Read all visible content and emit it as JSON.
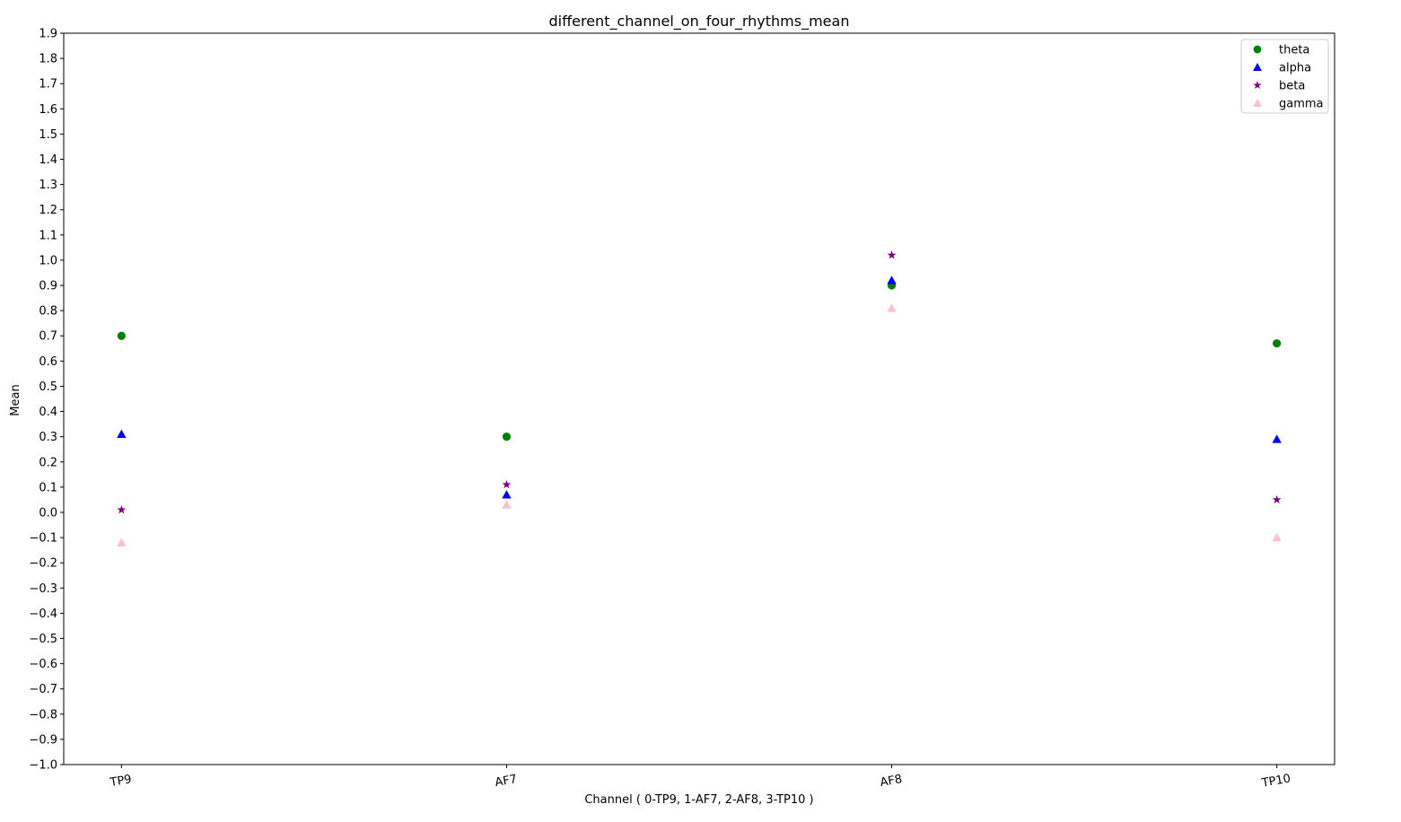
{
  "chart_data": {
    "type": "scatter",
    "title": "different_channel_on_four_rhythms_mean",
    "xlabel": "Channel ( 0-TP9, 1-AF7, 2-AF8, 3-TP10 )",
    "ylabel": "Mean",
    "categories": [
      "TP9",
      "AF7",
      "AF8",
      "TP10"
    ],
    "x": [
      0,
      1,
      2,
      3
    ],
    "ylim": [
      -1.0,
      1.9
    ],
    "yticks": [
      "-1.0",
      "-0.9",
      "-0.8",
      "-0.7",
      "-0.6",
      "-0.5",
      "-0.4",
      "-0.3",
      "-0.2",
      "-0.1",
      "0.0",
      "0.1",
      "0.2",
      "0.3",
      "0.4",
      "0.5",
      "0.6",
      "0.7",
      "0.8",
      "0.9",
      "1.0",
      "1.1",
      "1.2",
      "1.3",
      "1.4",
      "1.5",
      "1.6",
      "1.7",
      "1.8",
      "1.9"
    ],
    "grid": false,
    "legend_position": "top-right",
    "series": [
      {
        "name": "theta",
        "marker": "circle",
        "color": "#008000",
        "values": [
          0.7,
          0.3,
          0.9,
          0.67
        ]
      },
      {
        "name": "alpha",
        "marker": "triangle",
        "color": "#0000ff",
        "values": [
          0.31,
          0.07,
          0.92,
          0.29
        ]
      },
      {
        "name": "beta",
        "marker": "star",
        "color": "#800080",
        "values": [
          0.01,
          0.11,
          1.02,
          0.05
        ]
      },
      {
        "name": "gamma",
        "marker": "triangle",
        "color": "#ffc0cb",
        "values": [
          -0.12,
          0.03,
          0.81,
          -0.1
        ]
      }
    ]
  }
}
